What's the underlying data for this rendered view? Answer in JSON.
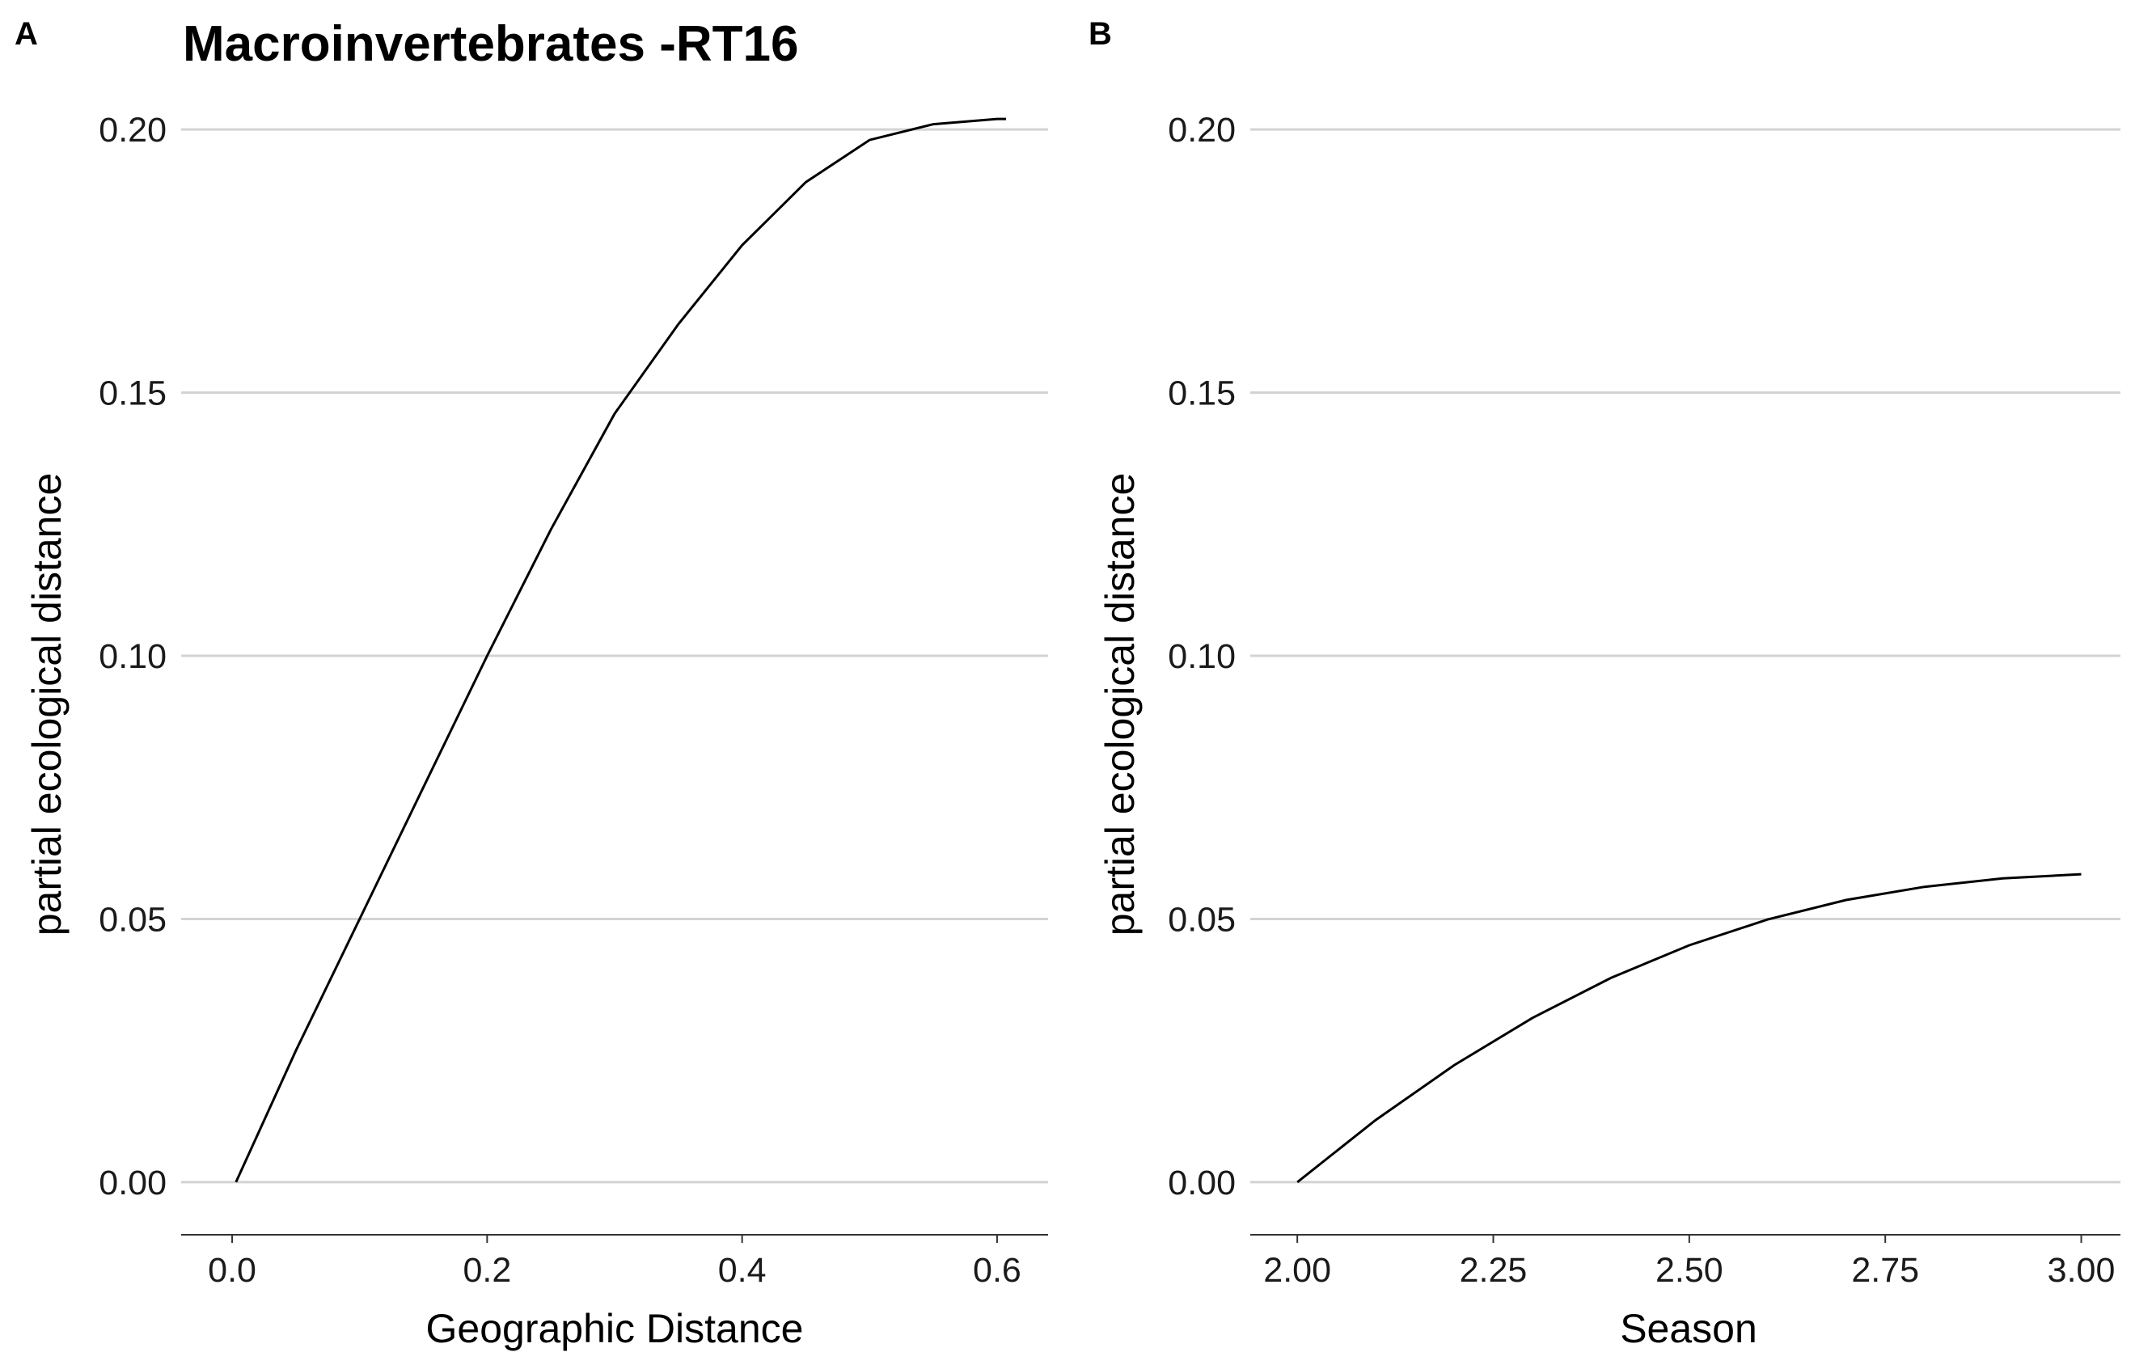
{
  "chart_data": [
    {
      "type": "line",
      "panel": "A",
      "title": "Macroinvertebrates -RT16",
      "xlabel": "Geographic Distance",
      "ylabel": "partial ecological distance",
      "xlim": [
        -0.04,
        0.64
      ],
      "ylim": [
        -0.01,
        0.21
      ],
      "xticks": [
        0.0,
        0.2,
        0.4,
        0.6
      ],
      "xtick_labels": [
        "0.0",
        "0.2",
        "0.4",
        "0.6"
      ],
      "yticks": [
        0.0,
        0.05,
        0.1,
        0.15,
        0.2
      ],
      "ytick_labels": [
        "0.00",
        "0.05",
        "0.10",
        "0.15",
        "0.20"
      ],
      "grid": "horizontal",
      "series": [
        {
          "x": [
            0.003,
            0.05,
            0.1,
            0.15,
            0.2,
            0.25,
            0.3,
            0.35,
            0.4,
            0.45,
            0.5,
            0.55,
            0.6,
            0.607
          ],
          "y": [
            0.0,
            0.025,
            0.05,
            0.075,
            0.1,
            0.124,
            0.146,
            0.163,
            0.178,
            0.19,
            0.198,
            0.201,
            0.202,
            0.202
          ]
        }
      ]
    },
    {
      "type": "line",
      "panel": "B",
      "title": "",
      "xlabel": "Season",
      "ylabel": "partial ecological distance",
      "xlim": [
        1.94,
        3.05
      ],
      "ylim": [
        -0.01,
        0.21
      ],
      "xticks": [
        2.0,
        2.25,
        2.5,
        2.75,
        3.0
      ],
      "xtick_labels": [
        "2.00",
        "2.25",
        "2.50",
        "2.75",
        "3.00"
      ],
      "yticks": [
        0.0,
        0.05,
        0.1,
        0.15,
        0.2
      ],
      "ytick_labels": [
        "0.00",
        "0.05",
        "0.10",
        "0.15",
        "0.20"
      ],
      "grid": "horizontal",
      "series": [
        {
          "x": [
            2.0,
            2.1,
            2.2,
            2.3,
            2.4,
            2.5,
            2.6,
            2.7,
            2.8,
            2.9,
            3.0
          ],
          "y": [
            0.0,
            0.0118,
            0.0222,
            0.0312,
            0.0388,
            0.045,
            0.0499,
            0.0536,
            0.0561,
            0.0577,
            0.0585
          ]
        }
      ]
    }
  ]
}
